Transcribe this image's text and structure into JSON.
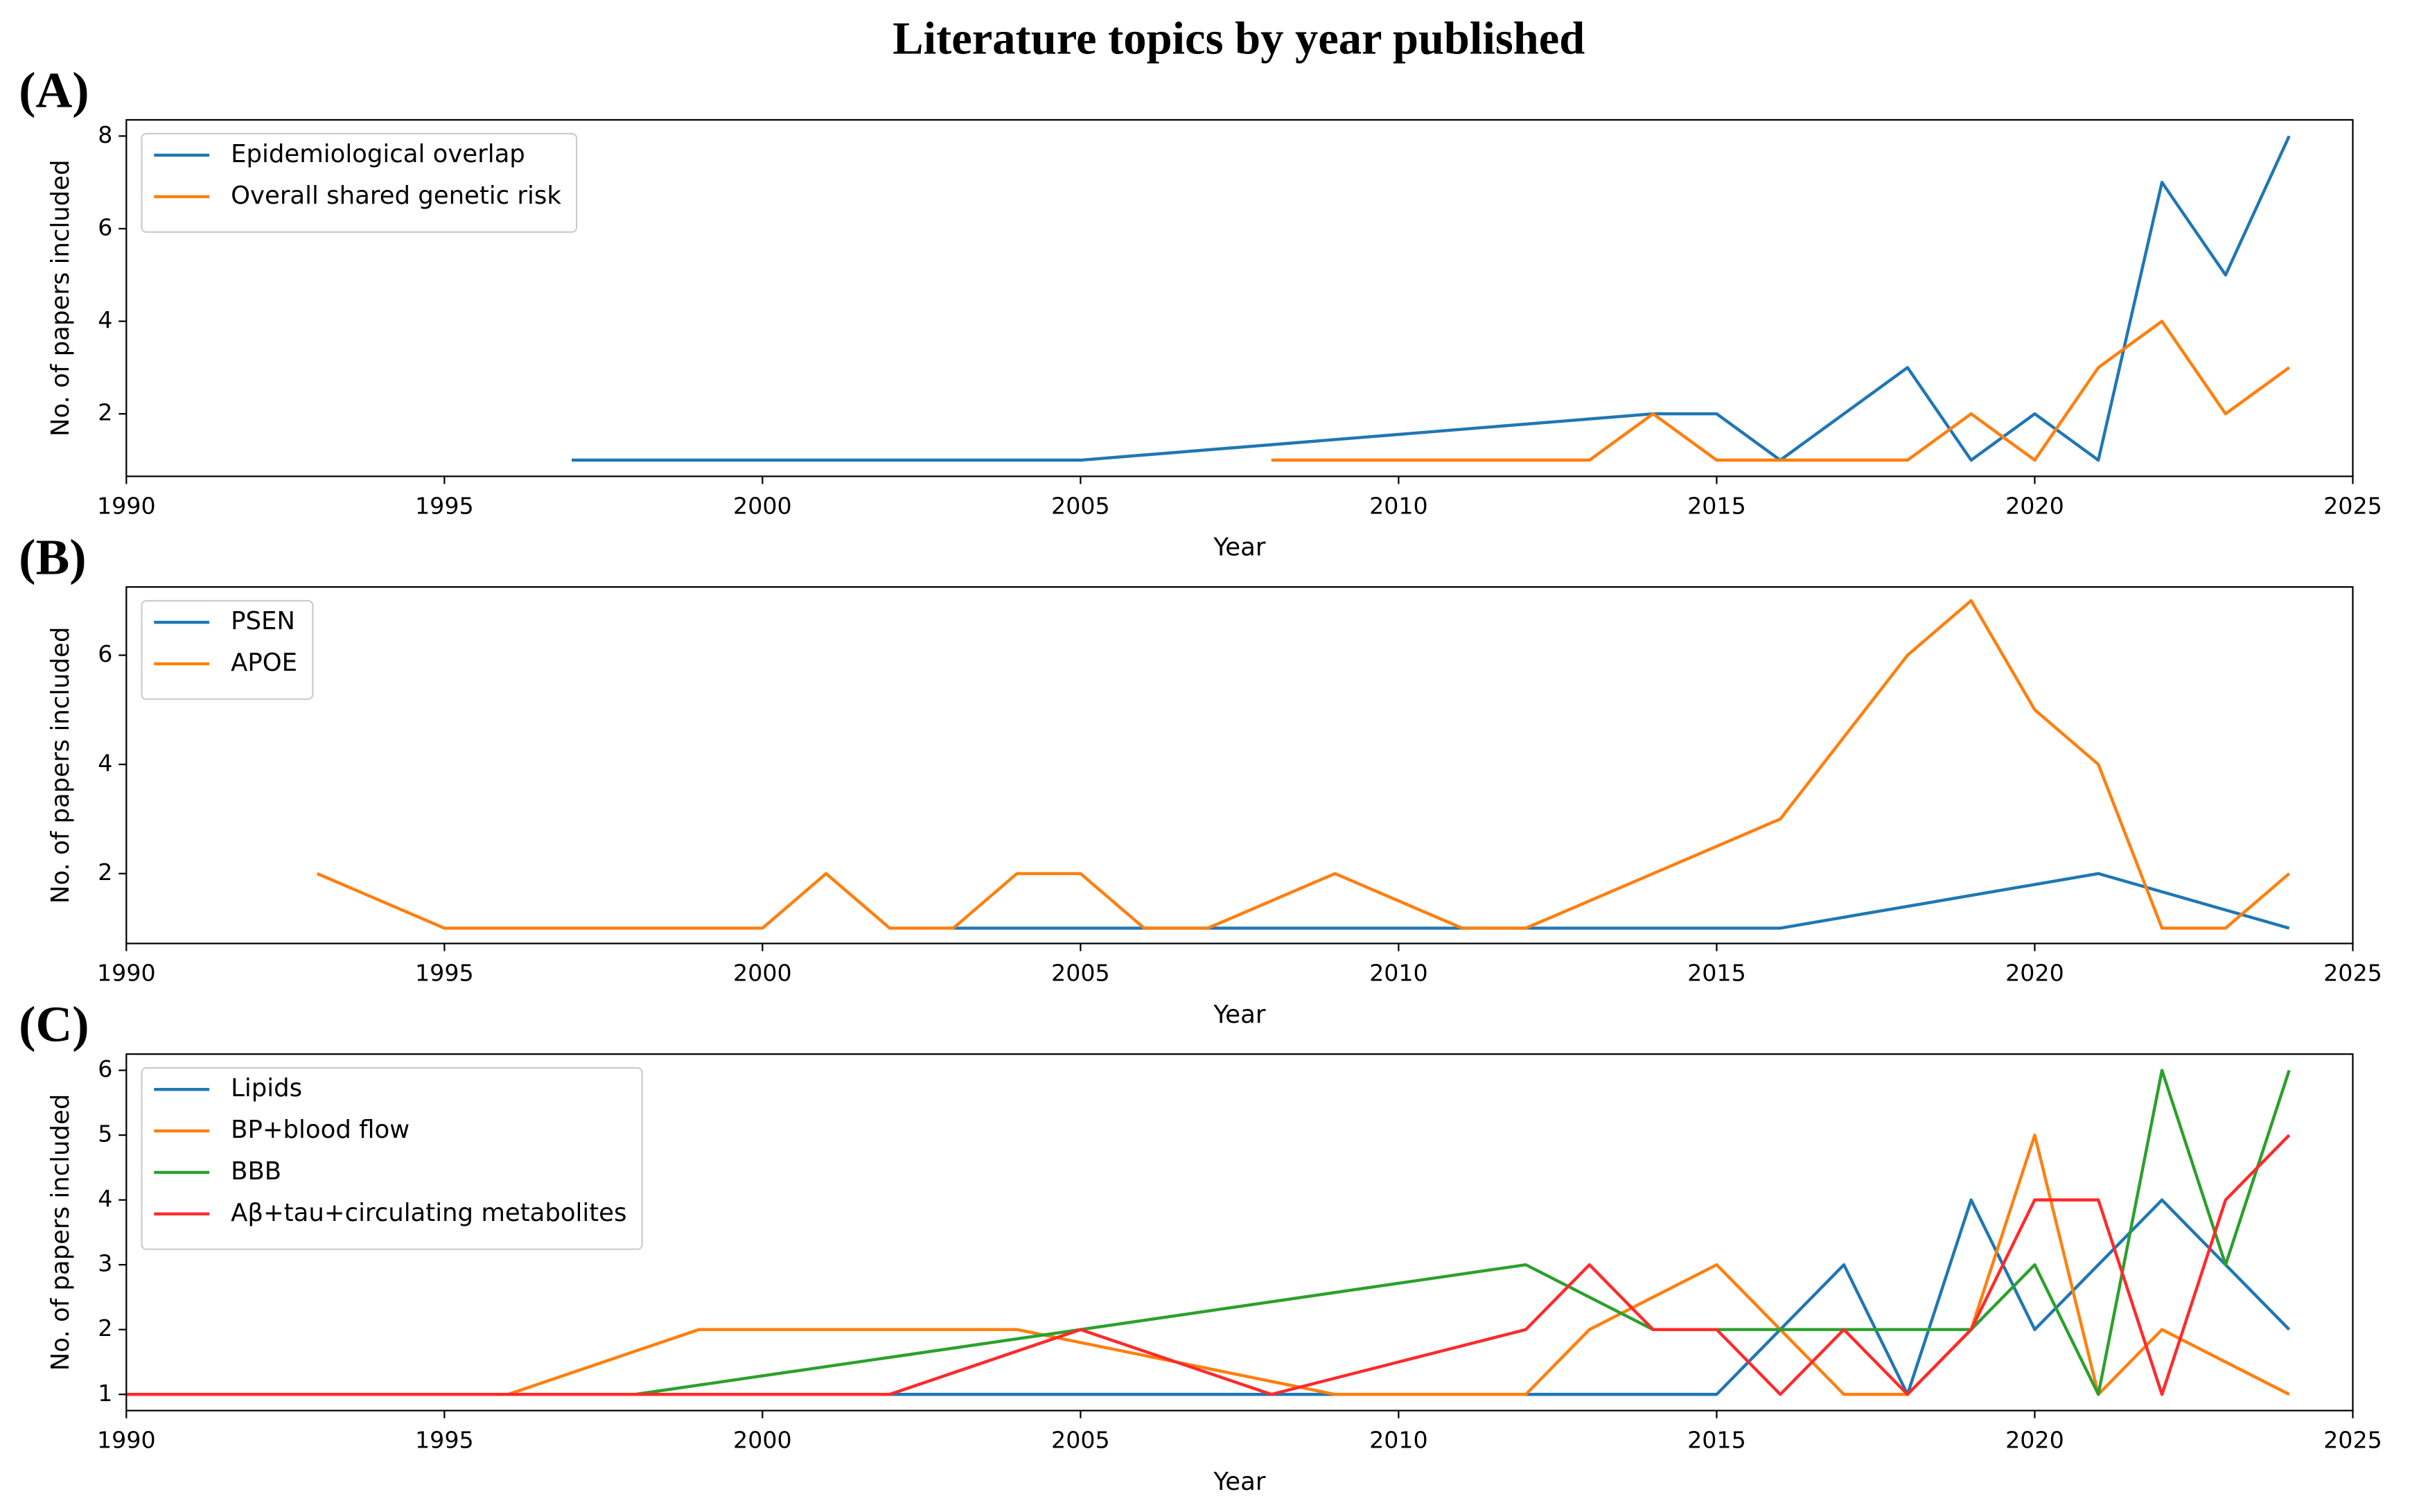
{
  "title": "Literature topics by year published",
  "chart_data": [
    {
      "type": "line",
      "panel_label": "(A)",
      "xlabel": "Year",
      "ylabel": "No. of papers included",
      "xlim": [
        1990,
        2025
      ],
      "xticks": [
        1990,
        1995,
        2000,
        2005,
        2010,
        2015,
        2020,
        2025
      ],
      "ylim": [
        0.65,
        8.35
      ],
      "yticks": [
        2,
        4,
        6,
        8
      ],
      "legend": "upper left",
      "series": [
        {
          "name": "Epidemiological overlap",
          "color": "#1f77b4",
          "x": [
            1997,
            2005,
            2014,
            2015,
            2016,
            2018,
            2019,
            2020,
            2021,
            2022,
            2023,
            2024
          ],
          "values": [
            1,
            1,
            2,
            2,
            1,
            3,
            1,
            2,
            1,
            7,
            5,
            8
          ]
        },
        {
          "name": "Overall shared genetic risk",
          "color": "#ff7f0e",
          "x": [
            2008,
            2013,
            2014,
            2015,
            2018,
            2019,
            2020,
            2021,
            2022,
            2023,
            2024
          ],
          "values": [
            1,
            1,
            2,
            1,
            1,
            2,
            1,
            3,
            4,
            2,
            3
          ]
        }
      ]
    },
    {
      "type": "line",
      "panel_label": "(B)",
      "xlabel": "Year",
      "ylabel": "No. of papers included",
      "xlim": [
        1990,
        2025
      ],
      "xticks": [
        1990,
        1995,
        2000,
        2005,
        2010,
        2015,
        2020,
        2025
      ],
      "ylim": [
        0.72,
        7.25
      ],
      "yticks": [
        2,
        4,
        6
      ],
      "legend": "upper left",
      "series": [
        {
          "name": "PSEN",
          "color": "#1f77b4",
          "x": [
            2003,
            2016,
            2021,
            2024
          ],
          "values": [
            1,
            1,
            2,
            1
          ]
        },
        {
          "name": "APOE",
          "color": "#ff7f0e",
          "x": [
            1993,
            1995,
            2000,
            2001,
            2002,
            2003,
            2004,
            2005,
            2006,
            2007,
            2009,
            2011,
            2012,
            2016,
            2018,
            2019,
            2020,
            2021,
            2022,
            2023,
            2024
          ],
          "values": [
            2,
            1,
            1,
            2,
            1,
            1,
            2,
            2,
            1,
            1,
            2,
            1,
            1,
            3,
            6,
            7,
            5,
            4,
            1,
            1,
            2
          ]
        }
      ]
    },
    {
      "type": "line",
      "panel_label": "(C)",
      "xlabel": "Year",
      "ylabel": "No. of papers included",
      "xlim": [
        1990,
        2025
      ],
      "xticks": [
        1990,
        1995,
        2000,
        2005,
        2010,
        2015,
        2020,
        2025
      ],
      "ylim": [
        0.75,
        6.25
      ],
      "yticks": [
        1,
        2,
        3,
        4,
        5,
        6
      ],
      "legend": "upper left",
      "series": [
        {
          "name": "Lipids",
          "color": "#1f77b4",
          "x": [
            1990,
            2015,
            2016,
            2017,
            2018,
            2019,
            2020,
            2021,
            2022,
            2023,
            2024
          ],
          "values": [
            1,
            1,
            2,
            3,
            1,
            4,
            2,
            3,
            4,
            3,
            2
          ]
        },
        {
          "name": "BP+blood flow",
          "color": "#ff7f0e",
          "x": [
            1990,
            1996,
            1999,
            2004,
            2009,
            2012,
            2013,
            2015,
            2016,
            2017,
            2018,
            2019,
            2020,
            2021,
            2022,
            2024
          ],
          "values": [
            1,
            1,
            2,
            2,
            1,
            1,
            2,
            3,
            2,
            1,
            1,
            2,
            5,
            1,
            2,
            1
          ]
        },
        {
          "name": "BBB",
          "color": "#2ca02c",
          "x": [
            1998,
            2012,
            2014,
            2019,
            2020,
            2021,
            2022,
            2023,
            2024
          ],
          "values": [
            1,
            3,
            2,
            2,
            3,
            1,
            6,
            3,
            6
          ]
        },
        {
          "name": "Aβ+tau+circulating metabolites",
          "color": "#ff2a2a",
          "x": [
            1990,
            2002,
            2005,
            2008,
            2012,
            2013,
            2014,
            2015,
            2016,
            2017,
            2018,
            2019,
            2020,
            2021,
            2022,
            2023,
            2024
          ],
          "values": [
            1,
            1,
            2,
            1,
            2,
            3,
            2,
            2,
            1,
            2,
            1,
            2,
            4,
            4,
            1,
            4,
            5
          ]
        }
      ]
    }
  ]
}
